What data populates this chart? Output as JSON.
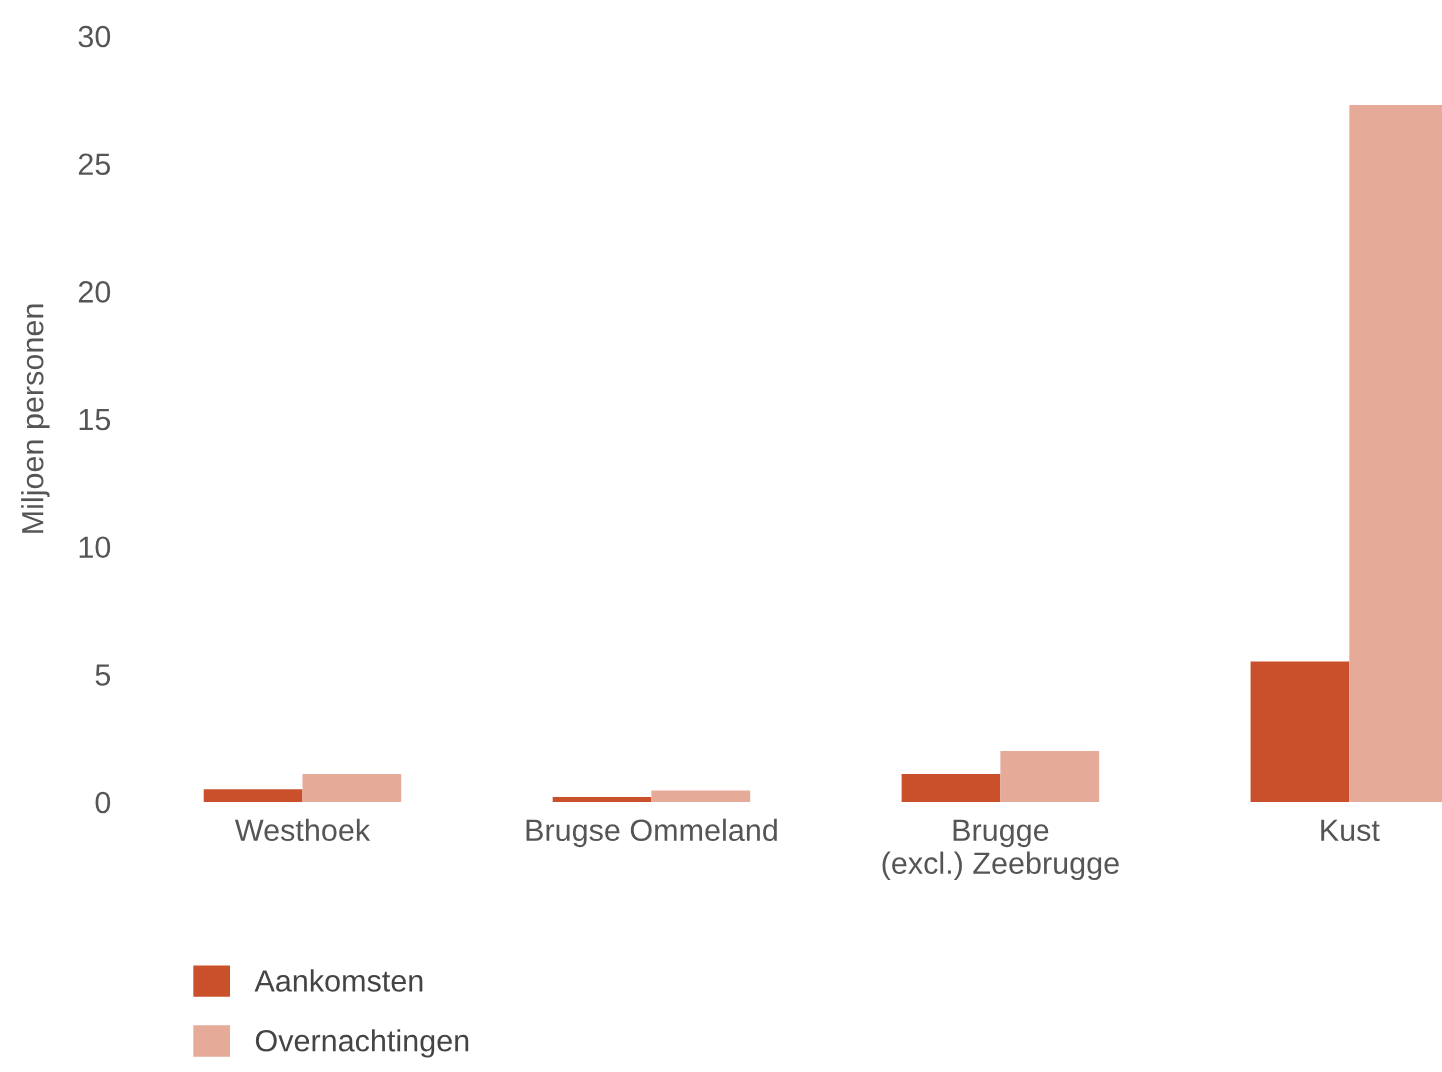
{
  "chart_data": {
    "type": "bar",
    "ylabel": "Miljoen personen",
    "categories": [
      "Westhoek",
      "Brugse Ommeland",
      "Brugge\n(excl.) Zeebrugge",
      "Kust"
    ],
    "series": [
      {
        "name": "Aankomsten",
        "color": "#c9502a",
        "values": [
          0.5,
          0.2,
          1.1,
          5.5
        ]
      },
      {
        "name": "Overnachtingen",
        "color": "#e5ab98",
        "values": [
          1.1,
          0.45,
          2.0,
          27.3
        ]
      }
    ],
    "ylim": [
      0,
      30
    ],
    "yticks": [
      0,
      5,
      10,
      15,
      20,
      25,
      30
    ],
    "grid": false,
    "legend": "bottom left"
  }
}
